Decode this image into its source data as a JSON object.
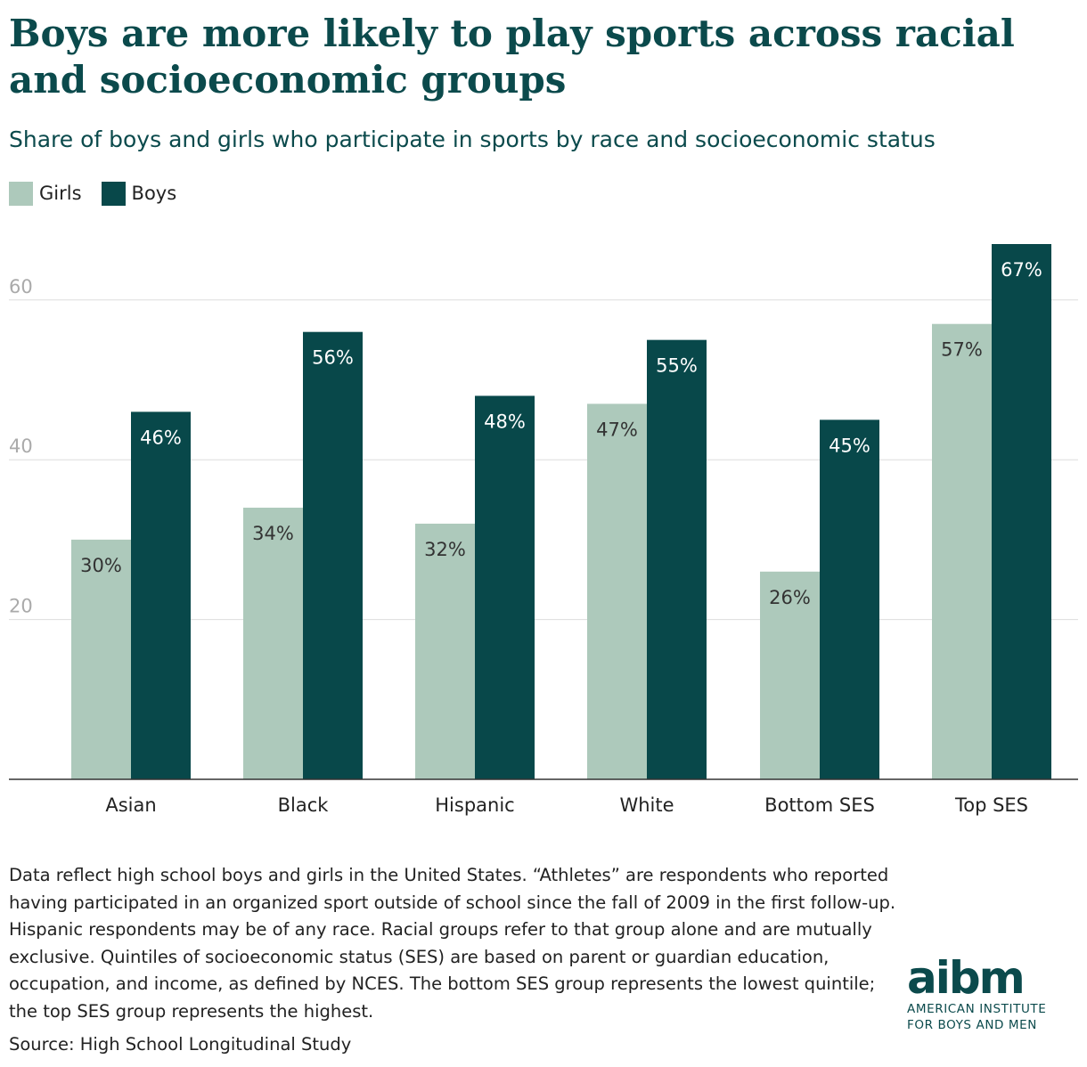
{
  "title": "Boys are more likely to play sports across racial and socioeconomic groups",
  "subtitle": "Share of boys and girls who participate in sports by race and socioeconomic status",
  "legend": [
    {
      "label": "Girls",
      "color": "#adc9bb"
    },
    {
      "label": "Boys",
      "color": "#08484a"
    }
  ],
  "chart_data": {
    "type": "bar",
    "categories": [
      "Asian",
      "Black",
      "Hispanic",
      "White",
      "Bottom SES",
      "Top SES"
    ],
    "series": [
      {
        "name": "Girls",
        "color": "#adc9bb",
        "values": [
          30,
          34,
          32,
          47,
          26,
          57
        ],
        "labels": [
          "30%",
          "34%",
          "32%",
          "47%",
          "26%",
          "57%"
        ]
      },
      {
        "name": "Boys",
        "color": "#08484a",
        "values": [
          46,
          56,
          48,
          55,
          45,
          67
        ],
        "labels": [
          "46%",
          "56%",
          "48%",
          "55%",
          "45%",
          "67%"
        ]
      }
    ],
    "yticks": [
      20,
      40,
      60
    ],
    "ylim": [
      0,
      70
    ],
    "grid": true,
    "xlabel": "",
    "ylabel": ""
  },
  "note": "Data reflect high school boys and girls in the United States. “Athletes” are respondents who reported having participated in an organized sport outside of school since the fall of 2009 in the first follow-up. Hispanic respondents may be of any race. Racial groups refer to that group alone and are mutually exclusive. Quintiles of socioeconomic status (SES) are based on parent or guardian education, occupation, and income, as defined by NCES. The bottom SES group represents the lowest quintile; the top SES group represents the highest.",
  "source": "Source: High School Longitudinal Study",
  "logo": {
    "word": "aibm",
    "line1": "AMERICAN INSTITUTE",
    "line2": "FOR BOYS AND MEN"
  }
}
